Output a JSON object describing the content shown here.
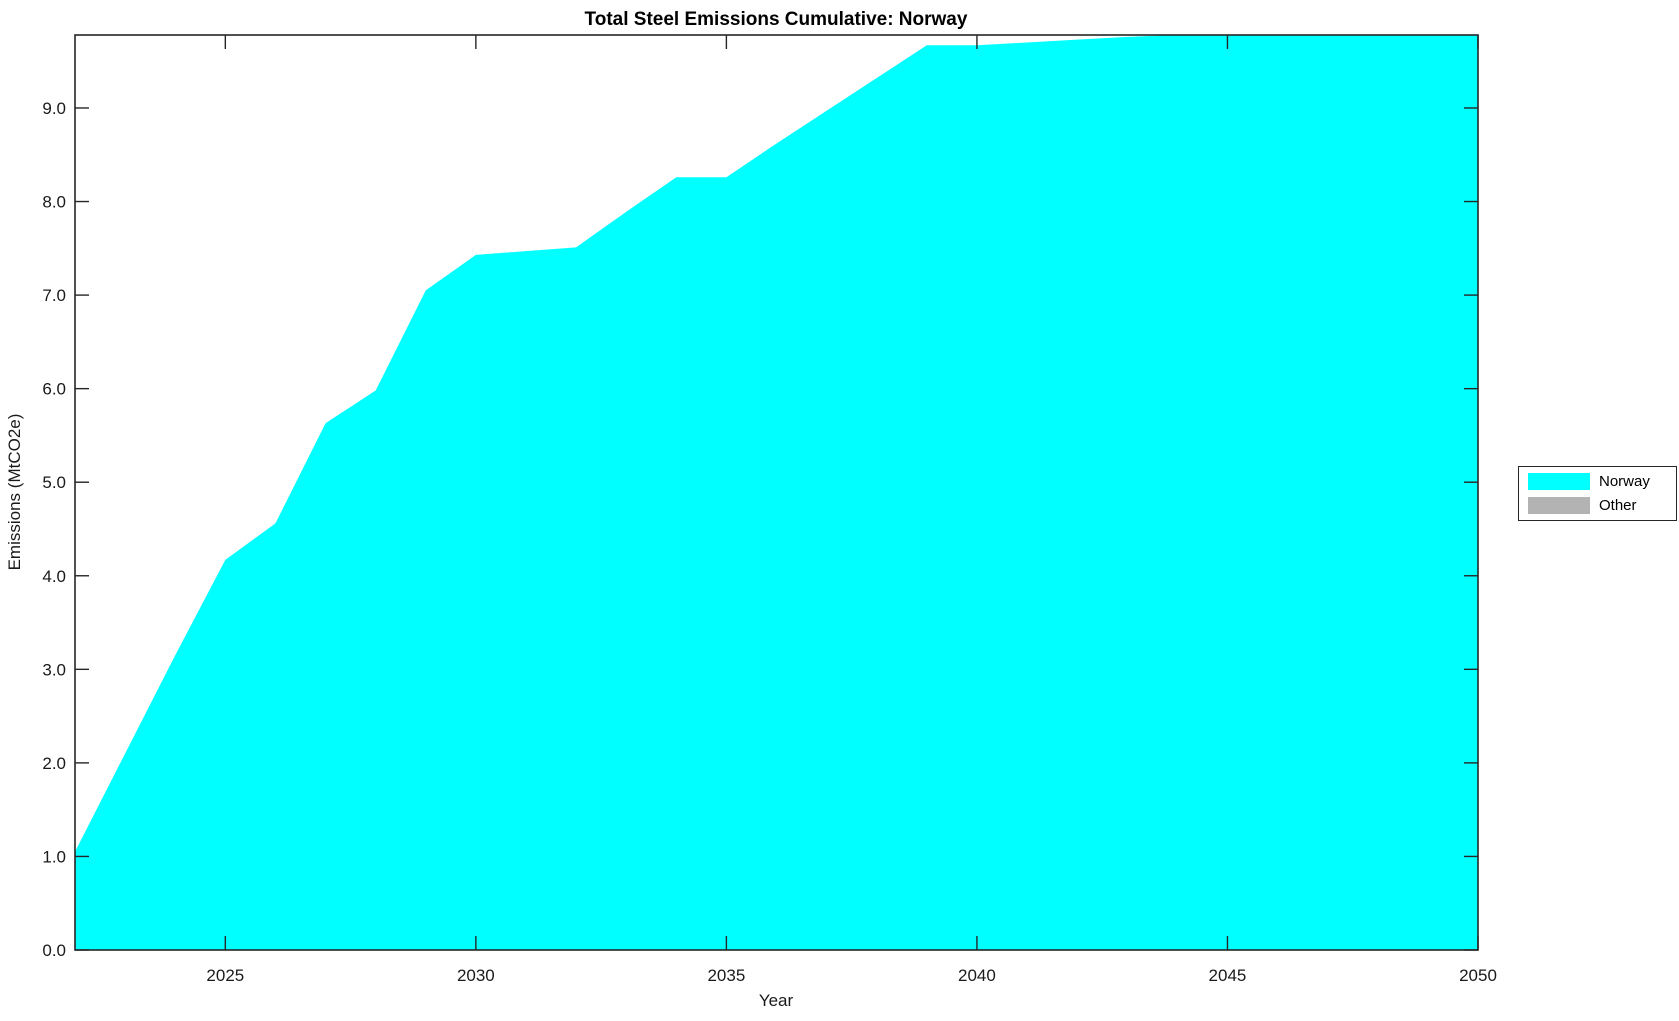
{
  "chart_data": {
    "type": "area",
    "title": "Total Steel Emissions Cumulative: Norway",
    "xlabel": "Year",
    "ylabel": "Emissions (MtCO2e)",
    "x": [
      2022,
      2023,
      2024,
      2025,
      2026,
      2027,
      2028,
      2029,
      2030,
      2031,
      2032,
      2033,
      2034,
      2035,
      2036,
      2037,
      2038,
      2039,
      2040,
      2041,
      2042,
      2043,
      2044,
      2045,
      2046,
      2047,
      2048,
      2049,
      2050
    ],
    "series": [
      {
        "name": "Norway",
        "color": "#00ffff",
        "values": [
          1.05,
          2.1,
          3.15,
          4.17,
          4.56,
          5.63,
          5.98,
          7.05,
          7.43,
          7.47,
          7.51,
          7.89,
          8.26,
          8.26,
          8.62,
          8.97,
          9.32,
          9.67,
          9.67,
          9.7,
          9.73,
          9.76,
          9.78,
          9.78,
          9.78,
          9.78,
          9.78,
          9.78,
          9.78
        ]
      },
      {
        "name": "Other",
        "color": "#b3b3b3",
        "values": [
          0,
          0,
          0,
          0,
          0,
          0,
          0,
          0,
          0,
          0,
          0,
          0,
          0,
          0,
          0,
          0,
          0,
          0,
          0,
          0,
          0,
          0,
          0,
          0,
          0,
          0,
          0,
          0,
          0
        ]
      }
    ],
    "xlim": [
      2022,
      2050
    ],
    "ylim": [
      0,
      9.78
    ],
    "x_ticks": [
      2025,
      2030,
      2035,
      2040,
      2045,
      2050
    ],
    "y_ticks": [
      0,
      1,
      2,
      3,
      4,
      5,
      6,
      7,
      8,
      9
    ],
    "grid": false,
    "legend_position": "right-outside",
    "frame_color": "#262626",
    "background": "#ffffff"
  },
  "legend": {
    "items": [
      {
        "label": "Norway",
        "color": "#00ffff"
      },
      {
        "label": "Other",
        "color": "#b3b3b3"
      }
    ]
  }
}
